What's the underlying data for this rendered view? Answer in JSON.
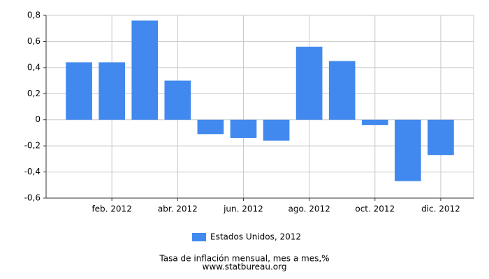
{
  "chart_data": {
    "type": "bar",
    "categories": [
      null,
      "feb. 2012",
      null,
      "abr. 2012",
      null,
      "jun. 2012",
      null,
      "ago. 2012",
      null,
      "oct. 2012",
      null,
      "dic. 2012"
    ],
    "series": [
      {
        "name": "Estados Unidos, 2012",
        "color": "#4189ef",
        "values": [
          0.44,
          0.44,
          0.76,
          0.3,
          -0.11,
          -0.14,
          -0.16,
          0.56,
          0.45,
          -0.04,
          -0.47,
          -0.27
        ]
      }
    ],
    "ylim": [
      -0.6,
      0.8
    ],
    "yticks": [
      {
        "value": -0.6,
        "label": "-0,6"
      },
      {
        "value": -0.4,
        "label": "-0,4"
      },
      {
        "value": -0.2,
        "label": "-0,2"
      },
      0,
      {
        "value": 0.2,
        "label": "0,2"
      },
      {
        "value": 0.4,
        "label": "0,4"
      },
      {
        "value": 0.6,
        "label": "0,6"
      },
      {
        "value": 0.8,
        "label": "0,8"
      }
    ],
    "grid": true,
    "legend": "bottom",
    "caption": "Tasa de inflación mensual, mes a mes,%",
    "source": "www.statbureau.org"
  }
}
